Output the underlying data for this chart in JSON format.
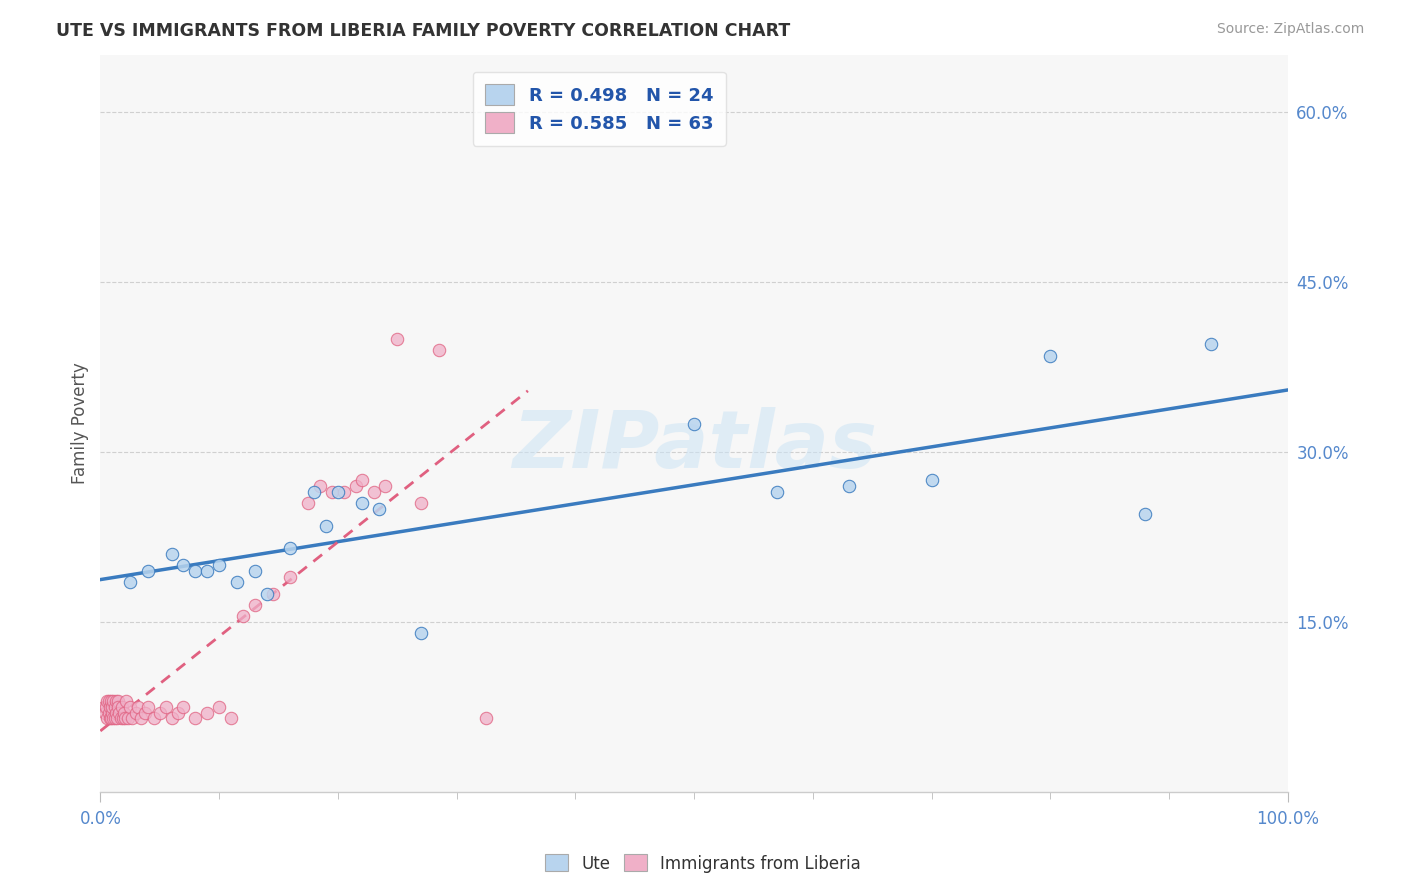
{
  "title": "UTE VS IMMIGRANTS FROM LIBERIA FAMILY POVERTY CORRELATION CHART",
  "source": "Source: ZipAtlas.com",
  "ylabel": "Family Poverty",
  "xlim": [
    0,
    1.0
  ],
  "ylim": [
    0,
    0.65
  ],
  "yticks": [
    0.15,
    0.3,
    0.45,
    0.6
  ],
  "ytick_labels": [
    "15.0%",
    "30.0%",
    "45.0%",
    "60.0%"
  ],
  "xtick_labels": [
    "0.0%",
    "100.0%"
  ],
  "bg_color": "#ffffff",
  "plot_bg_color": "#f7f7f7",
  "watermark": "ZIPatlas",
  "legend_r1": "R = 0.498   N = 24",
  "legend_r2": "R = 0.585   N = 63",
  "ute_color": "#b8d4ee",
  "liberia_color": "#f0b0c8",
  "ute_line_color": "#3a7bbf",
  "liberia_line_color": "#e06080",
  "title_color": "#333333",
  "tick_color": "#5588cc",
  "ute_x": [
    0.025,
    0.04,
    0.06,
    0.07,
    0.08,
    0.09,
    0.1,
    0.115,
    0.13,
    0.14,
    0.16,
    0.18,
    0.19,
    0.2,
    0.22,
    0.235,
    0.27,
    0.5,
    0.57,
    0.63,
    0.7,
    0.8,
    0.88,
    0.935
  ],
  "ute_y": [
    0.185,
    0.195,
    0.21,
    0.2,
    0.195,
    0.195,
    0.2,
    0.185,
    0.195,
    0.175,
    0.215,
    0.265,
    0.235,
    0.265,
    0.255,
    0.25,
    0.14,
    0.325,
    0.265,
    0.27,
    0.275,
    0.385,
    0.245,
    0.395
  ],
  "lib_x": [
    0.003,
    0.004,
    0.005,
    0.006,
    0.006,
    0.007,
    0.007,
    0.008,
    0.008,
    0.009,
    0.009,
    0.01,
    0.01,
    0.011,
    0.011,
    0.012,
    0.012,
    0.013,
    0.013,
    0.014,
    0.015,
    0.015,
    0.016,
    0.017,
    0.018,
    0.019,
    0.02,
    0.021,
    0.022,
    0.023,
    0.025,
    0.027,
    0.03,
    0.032,
    0.034,
    0.038,
    0.04,
    0.045,
    0.05,
    0.055,
    0.06,
    0.065,
    0.07,
    0.08,
    0.09,
    0.1,
    0.11,
    0.12,
    0.13,
    0.145,
    0.16,
    0.175,
    0.185,
    0.195,
    0.205,
    0.215,
    0.22,
    0.23,
    0.24,
    0.25,
    0.27,
    0.285,
    0.325
  ],
  "lib_y": [
    0.075,
    0.07,
    0.075,
    0.065,
    0.08,
    0.07,
    0.08,
    0.065,
    0.075,
    0.065,
    0.08,
    0.07,
    0.075,
    0.065,
    0.08,
    0.075,
    0.065,
    0.08,
    0.07,
    0.065,
    0.08,
    0.075,
    0.07,
    0.065,
    0.075,
    0.065,
    0.07,
    0.065,
    0.08,
    0.065,
    0.075,
    0.065,
    0.07,
    0.075,
    0.065,
    0.07,
    0.075,
    0.065,
    0.07,
    0.075,
    0.065,
    0.07,
    0.075,
    0.065,
    0.07,
    0.075,
    0.065,
    0.155,
    0.165,
    0.175,
    0.19,
    0.255,
    0.27,
    0.265,
    0.265,
    0.27,
    0.275,
    0.265,
    0.27,
    0.4,
    0.255,
    0.39,
    0.065
  ]
}
